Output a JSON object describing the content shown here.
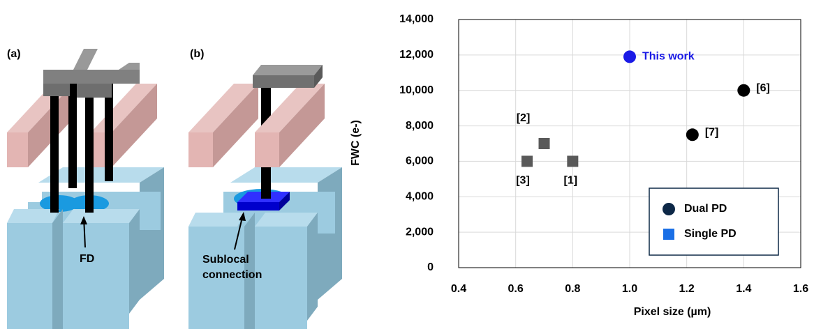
{
  "diagrams": {
    "a": {
      "label": "(a)",
      "annotation": "FD"
    },
    "b": {
      "label": "(b)",
      "annotation": [
        "Sublocal",
        "connection"
      ]
    }
  },
  "chart_data": {
    "type": "scatter",
    "xlabel": "Pixel size (µm)",
    "ylabel": "FWC (e-)",
    "xlim": [
      0.4,
      1.6
    ],
    "xticks": [
      0.4,
      0.6,
      0.8,
      {
        "value": 1,
        "label": "1.0"
      },
      1.2,
      1.4,
      1.6
    ],
    "ylim": [
      0,
      14000
    ],
    "yticks": [
      0,
      {
        "value": 2000,
        "label": "2,000"
      },
      {
        "value": 4000,
        "label": "4,000"
      },
      {
        "value": 6000,
        "label": "6,000"
      },
      {
        "value": 8000,
        "label": "8,000"
      },
      {
        "value": 10000,
        "label": "10,000"
      },
      {
        "value": 12000,
        "label": "12,000"
      },
      {
        "value": 14000,
        "label": "14,000"
      }
    ],
    "grid": true,
    "legend": "lower right",
    "series": [
      {
        "name": "Dual PD",
        "marker": "circle",
        "color": "#0d2847",
        "x": [
          1.0,
          1.22,
          1.4
        ],
        "values": [
          11900,
          7500,
          10000
        ],
        "point_colors": [
          "#1a1ae6",
          "#000000",
          "#000000"
        ],
        "labels": [
          "This work",
          "[7]",
          "[6]"
        ],
        "label_colors": [
          "#1a1ae6",
          "#000000",
          "#000000"
        ]
      },
      {
        "name": "Single PD",
        "marker": "square",
        "color": "#1a6fe6",
        "x": [
          0.8,
          0.7,
          0.64
        ],
        "values": [
          6000,
          7000,
          6000
        ],
        "point_colors": [
          "#595959",
          "#595959",
          "#595959"
        ],
        "labels": [
          "[1]",
          "[2]",
          "[3]"
        ],
        "label_colors": [
          "#000000",
          "#000000",
          "#000000"
        ]
      }
    ]
  }
}
